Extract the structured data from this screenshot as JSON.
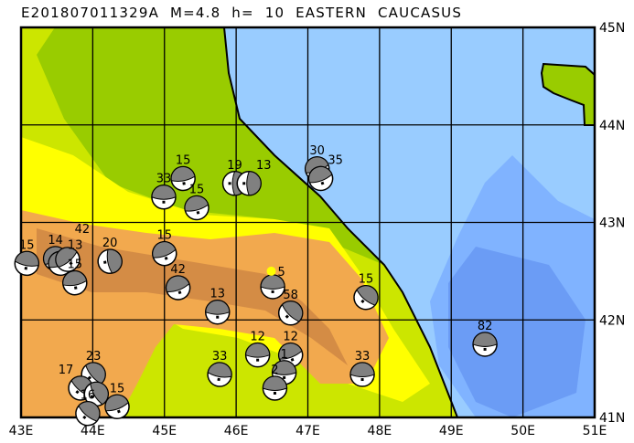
{
  "title": "E201807011329A  M=4.8  h=  10  EASTERN  CAUCASUS",
  "map": {
    "lon_range": [
      43,
      51
    ],
    "lat_range": [
      41,
      45
    ],
    "lon_ticks": [
      "43E",
      "44E",
      "45E",
      "46E",
      "47E",
      "48E",
      "49E",
      "50E",
      "51E"
    ],
    "lat_ticks": [
      "45N",
      "44N",
      "43N",
      "42N",
      "41N"
    ],
    "colors": {
      "sea_shallow": "#99ccff",
      "sea_mid": "#80b3ff",
      "sea_deep": "#6b9cf5",
      "lowland_green": "#99cc00",
      "plain_yellowgreen": "#cce600",
      "foothill_yellow": "#ffff00",
      "mountain_orange": "#f2a94e",
      "mountain_brown": "#d48c45",
      "beachball_compression": "#808080",
      "main_event": "#ffff00"
    }
  },
  "events": [
    {
      "depth": "15",
      "lon": 43.08,
      "lat": 42.58,
      "rot": 10
    },
    {
      "depth": "14",
      "lon": 43.48,
      "lat": 42.63,
      "rot": -30
    },
    {
      "depth": "13",
      "lon": 43.55,
      "lat": 42.58,
      "rot": -20
    },
    {
      "depth": "42",
      "lon": 43.65,
      "lat": 42.62,
      "rot": -40
    },
    {
      "depth": "15",
      "lon": 43.75,
      "lat": 42.38,
      "rot": -10
    },
    {
      "depth": "20",
      "lon": 44.24,
      "lat": 42.6,
      "rot": 80
    },
    {
      "depth": "33",
      "lon": 44.99,
      "lat": 43.26,
      "rot": 0
    },
    {
      "depth": "15",
      "lon": 45.26,
      "lat": 43.45,
      "rot": -10
    },
    {
      "depth": "15",
      "lon": 45.45,
      "lat": 43.15,
      "rot": -15
    },
    {
      "depth": "15",
      "lon": 45.0,
      "lat": 42.68,
      "rot": -20
    },
    {
      "depth": "42",
      "lon": 45.19,
      "lat": 42.33,
      "rot": -20
    },
    {
      "depth": "13",
      "lon": 45.74,
      "lat": 42.08,
      "rot": 0
    },
    {
      "depth": "19",
      "lon": 45.98,
      "lat": 43.4,
      "rot": 90
    },
    {
      "depth": "13",
      "lon": 46.18,
      "lat": 43.4,
      "rot": 90
    },
    {
      "depth": "30",
      "lon": 47.13,
      "lat": 43.55,
      "rot": -20
    },
    {
      "depth": "35",
      "lon": 47.18,
      "lat": 43.45,
      "rot": -20
    },
    {
      "depth": "",
      "lon": 46.51,
      "lat": 42.34,
      "rot": 0
    },
    {
      "depth": "58",
      "lon": 46.76,
      "lat": 42.07,
      "rot": 45
    },
    {
      "depth": "15",
      "lon": 47.81,
      "lat": 42.23,
      "rot": 40
    },
    {
      "depth": "82",
      "lon": 49.47,
      "lat": 41.75,
      "rot": 0
    },
    {
      "depth": "12",
      "lon": 46.3,
      "lat": 41.64,
      "rot": 0
    },
    {
      "depth": "12",
      "lon": 46.76,
      "lat": 41.64,
      "rot": -20
    },
    {
      "depth": "1",
      "lon": 46.67,
      "lat": 41.46,
      "rot": 0
    },
    {
      "depth": "2",
      "lon": 46.54,
      "lat": 41.3,
      "rot": 0
    },
    {
      "depth": "33",
      "lon": 45.77,
      "lat": 41.44,
      "rot": 10
    },
    {
      "depth": "33",
      "lon": 47.76,
      "lat": 41.44,
      "rot": 0
    },
    {
      "depth": "23",
      "lon": 44.01,
      "lat": 41.44,
      "rot": 50
    },
    {
      "depth": "17",
      "lon": 43.83,
      "lat": 41.3,
      "rot": 40
    },
    {
      "depth": "",
      "lon": 44.05,
      "lat": 41.24,
      "rot": 60
    },
    {
      "depth": "15",
      "lon": 44.34,
      "lat": 41.11,
      "rot": -20
    },
    {
      "depth": "16",
      "lon": 43.93,
      "lat": 41.04,
      "rot": 40
    }
  ],
  "main_event": {
    "label": "5",
    "lon": 46.49,
    "lat": 42.5
  }
}
